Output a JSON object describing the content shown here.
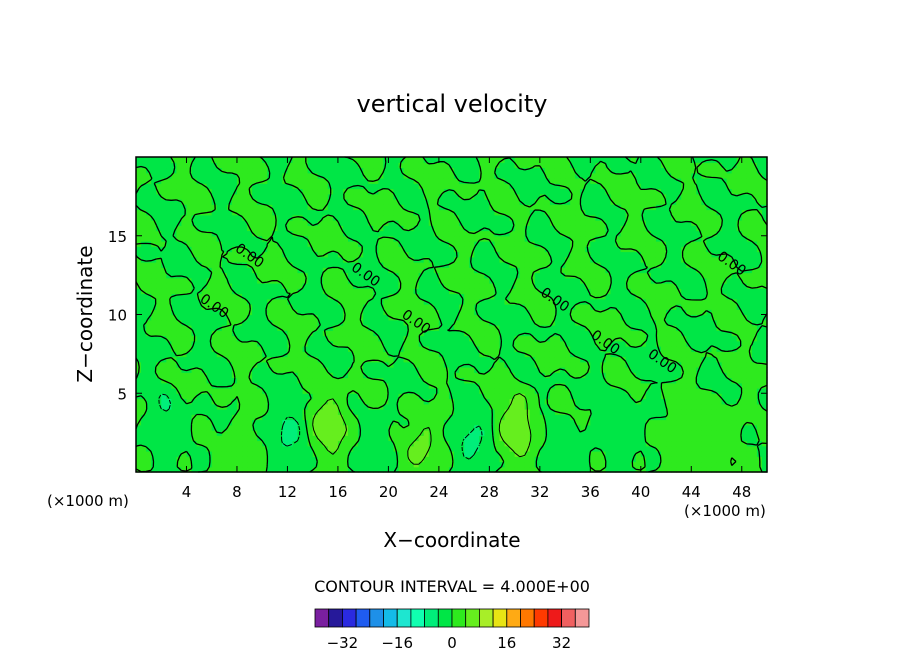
{
  "chart_data": {
    "type": "heatmap",
    "title": "vertical velocity",
    "xlabel": "X−coordinate",
    "ylabel": "Z−coordinate",
    "x_unit_left": "(×1000 m)",
    "x_unit_right": "(×1000 m)",
    "xlim": [
      0,
      50
    ],
    "ylim": [
      0,
      20
    ],
    "x_ticks": [
      4,
      8,
      12,
      16,
      20,
      24,
      28,
      32,
      36,
      40,
      44,
      48
    ],
    "y_ticks": [
      5,
      10,
      15
    ],
    "contour_interval_text": "CONTOUR INTERVAL =  4.000E+00",
    "contour_labels": [
      {
        "x": 8.8,
        "z": 13.5,
        "text": "0.00"
      },
      {
        "x": 18.0,
        "z": 12.3,
        "text": "0.00"
      },
      {
        "x": 6.0,
        "z": 10.3,
        "text": "0.00"
      },
      {
        "x": 22.0,
        "z": 9.3,
        "text": "0.00"
      },
      {
        "x": 33.0,
        "z": 10.7,
        "text": "0.00"
      },
      {
        "x": 37.0,
        "z": 8.0,
        "text": "0.00"
      },
      {
        "x": 41.5,
        "z": 6.8,
        "text": "0.00"
      },
      {
        "x": 47.0,
        "z": 13.0,
        "text": "0.00"
      }
    ],
    "features": [
      {
        "x": 15.4,
        "z": 3.0,
        "w": 7.2
      },
      {
        "x": 22.7,
        "z": 1.6,
        "w": 5.6
      },
      {
        "x": 30.2,
        "z": 2.9,
        "w": 7.6
      },
      {
        "x": 8.2,
        "z": 1.4,
        "w": 3.0
      },
      {
        "x": 43.0,
        "z": 2.2,
        "w": 3.2
      },
      {
        "x": 46.2,
        "z": 2.4,
        "w": 3.0
      },
      {
        "x": 12.0,
        "z": 2.6,
        "w": -4.8
      },
      {
        "x": 26.5,
        "z": 2.2,
        "w": -5.0
      },
      {
        "x": 19.2,
        "z": 2.2,
        "w": -2.2
      },
      {
        "x": 34.0,
        "z": 2.0,
        "w": -2.2
      },
      {
        "x": 2.4,
        "z": 3.2,
        "w": -3.4
      },
      {
        "x": 38.6,
        "z": 2.8,
        "w": -3.0
      }
    ],
    "colorbar": {
      "ticks": [
        "−32",
        "−16",
        "0",
        "16",
        "32"
      ],
      "colors": [
        "#7a1fa0",
        "#26199a",
        "#2a2ae0",
        "#1f5cf0",
        "#1e90e8",
        "#14bbe8",
        "#1ee6d0",
        "#10ffb0",
        "#00ee7a",
        "#00e646",
        "#2eea1e",
        "#66ee1e",
        "#a8ee28",
        "#e8e414",
        "#ffaa14",
        "#ff7800",
        "#ff3a00",
        "#ee1a1a",
        "#f06060",
        "#f49898"
      ]
    }
  }
}
